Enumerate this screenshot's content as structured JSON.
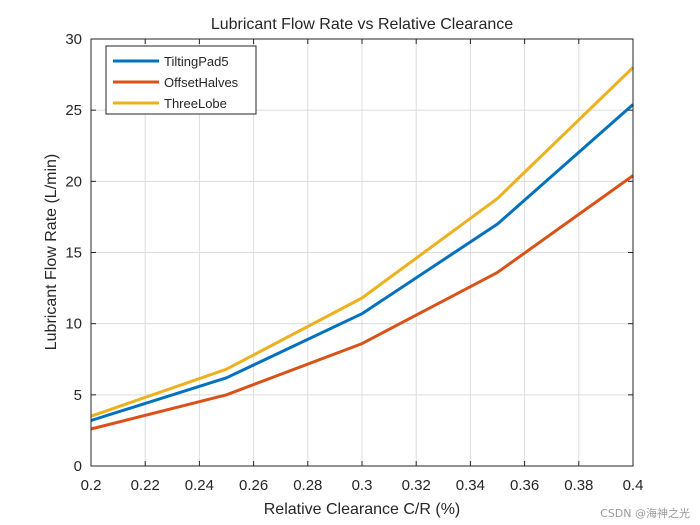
{
  "chart_data": {
    "type": "line",
    "title": "Lubricant Flow Rate vs Relative Clearance",
    "xlabel": "Relative Clearance C/R (%)",
    "ylabel": "Lubricant Flow Rate (L/min)",
    "xlim": [
      0.2,
      0.4
    ],
    "ylim": [
      0,
      30
    ],
    "xticks": [
      "0.2",
      "0.22",
      "0.24",
      "0.26",
      "0.28",
      "0.3",
      "0.32",
      "0.34",
      "0.36",
      "0.38",
      "0.4"
    ],
    "yticks": [
      "0",
      "5",
      "10",
      "15",
      "20",
      "25",
      "30"
    ],
    "grid": true,
    "legend_position": "top-left",
    "x": [
      0.2,
      0.25,
      0.3,
      0.35,
      0.4
    ],
    "series": [
      {
        "name": "TiltingPad5",
        "color": "#0072BD",
        "values": [
          3.2,
          6.2,
          10.7,
          17.0,
          25.4
        ]
      },
      {
        "name": "OffsetHalves",
        "color": "#D95319",
        "values": [
          2.6,
          5.0,
          8.6,
          13.6,
          20.4
        ]
      },
      {
        "name": "ThreeLobe",
        "color": "#EDB120",
        "values": [
          3.5,
          6.8,
          11.8,
          18.8,
          28.0
        ]
      }
    ]
  },
  "watermark": "CSDN @海神之光"
}
